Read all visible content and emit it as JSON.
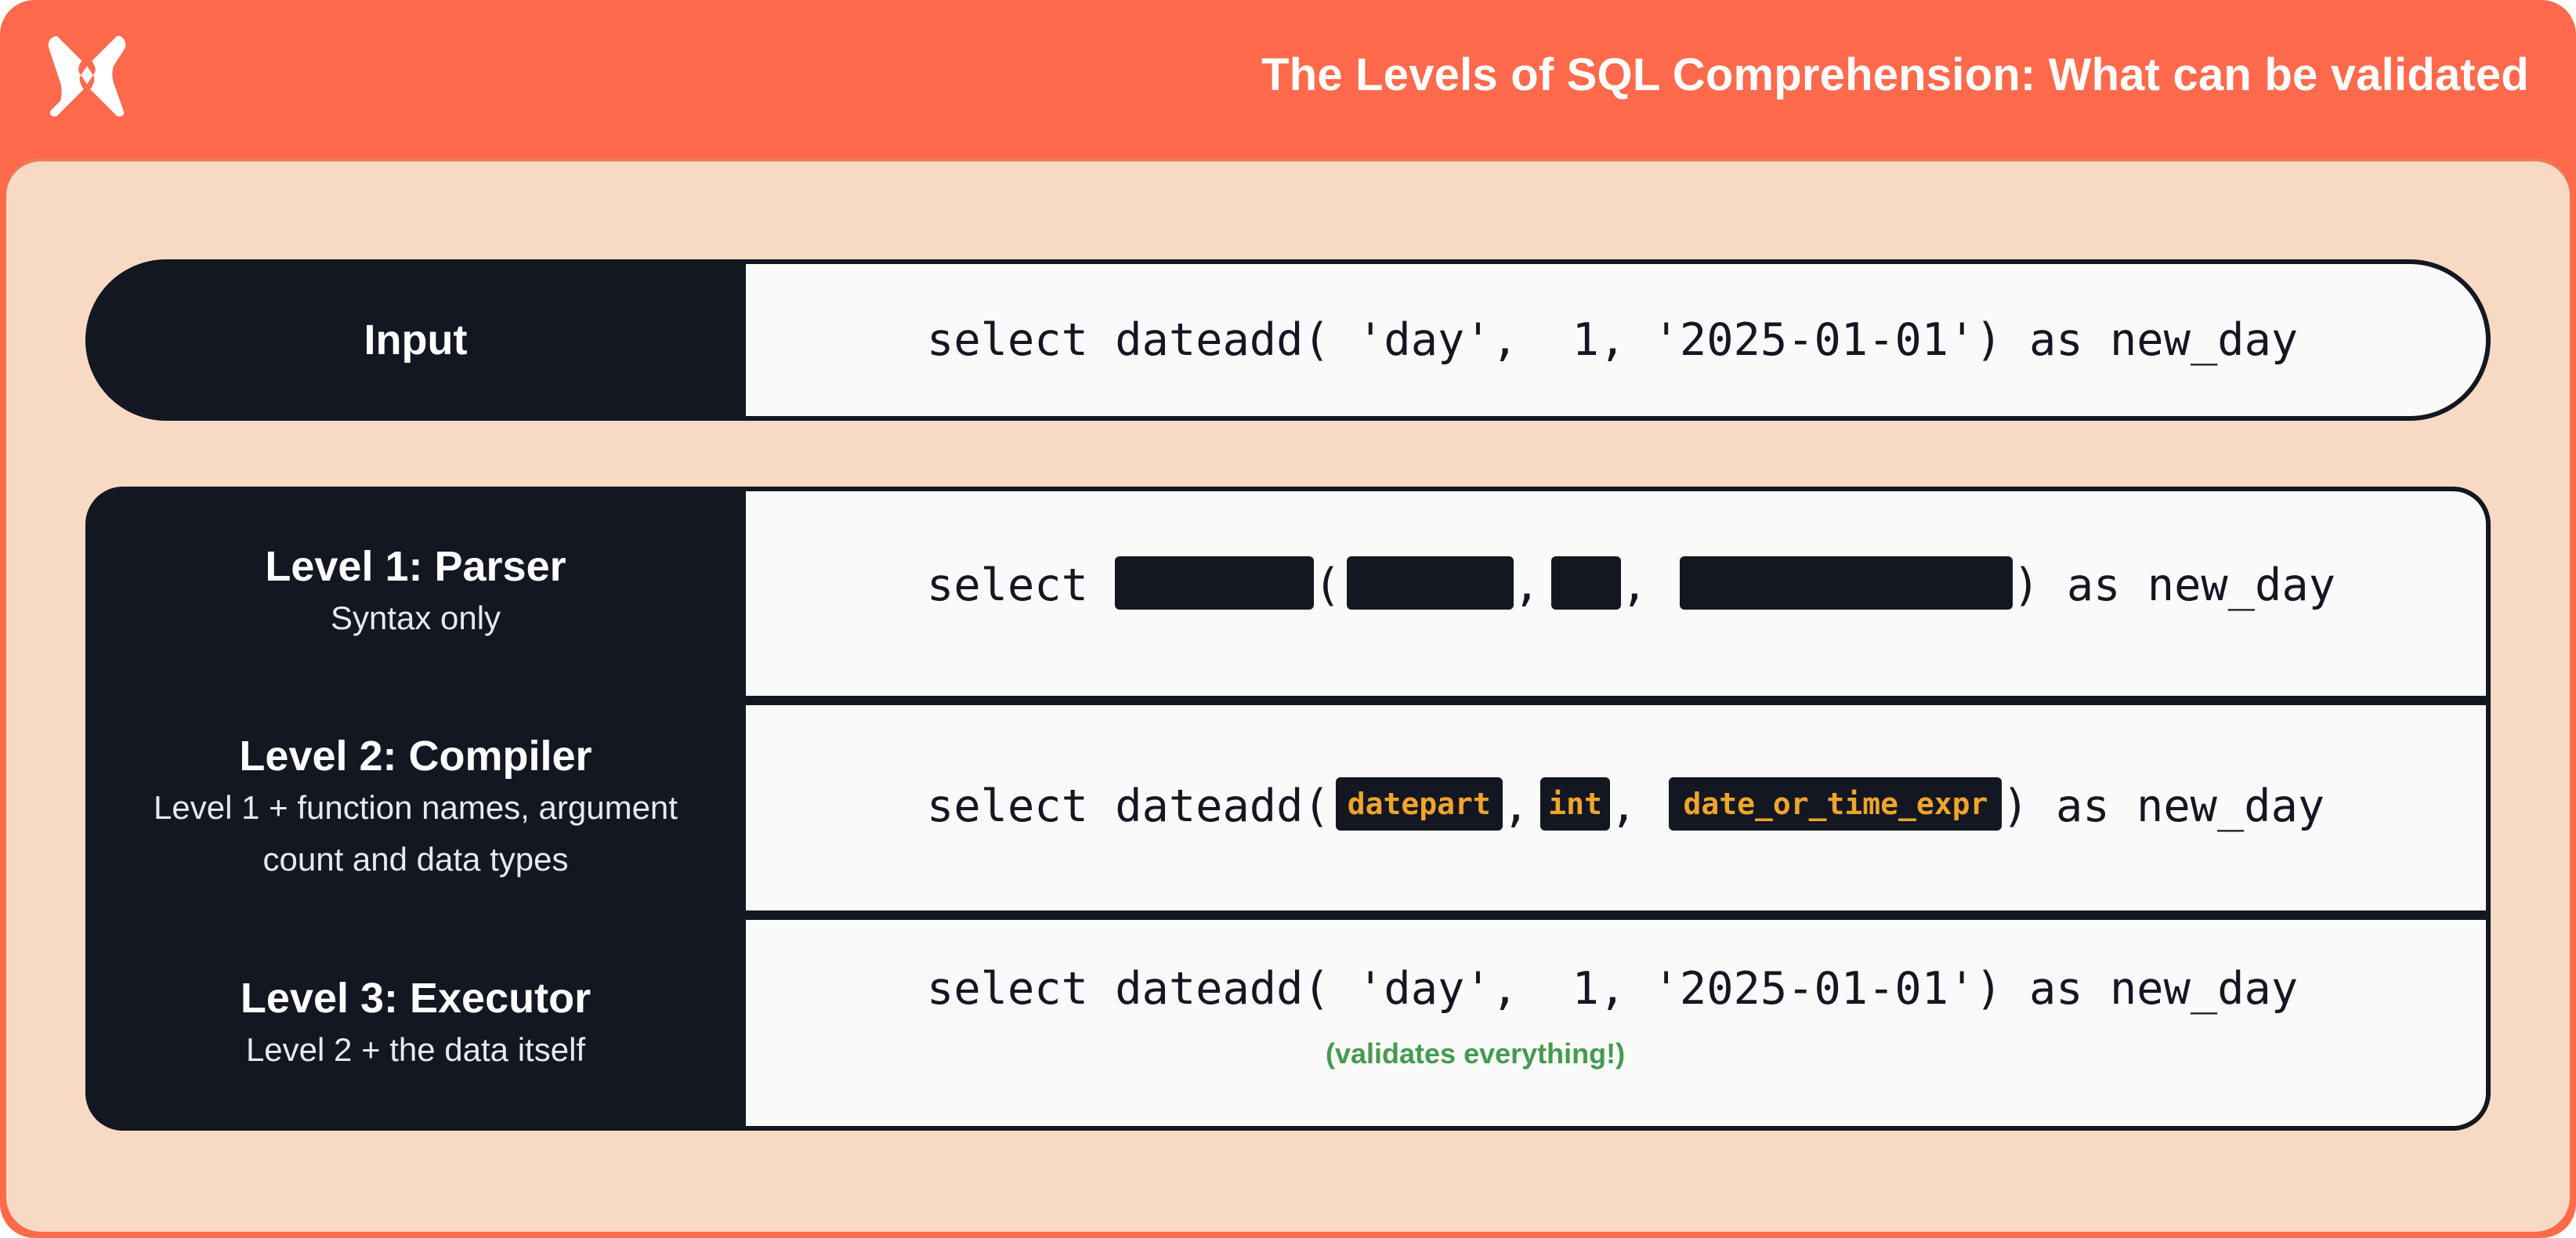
{
  "header": {
    "title": "The Levels of SQL Comprehension: What can be validated",
    "logo": "dbt-logo",
    "colors": {
      "header_bg": "#FF6A4C",
      "panel_bg": "#F8DAC4",
      "dark": "#131722",
      "hint": "#F0A52A",
      "green": "#459A4E"
    }
  },
  "input": {
    "label": "Input",
    "code": {
      "prefix": "select dateadd( ",
      "arg1": "'day'",
      "sep1": ",  ",
      "arg2": "1",
      "sep2": ", ",
      "arg3": "'2025-01-01'",
      "suffix": ") as new_day"
    }
  },
  "levels": [
    {
      "title": "Level 1: Parser",
      "subtitle": "Syntax only",
      "code": {
        "prefix": "select ",
        "open": "(",
        "comma": ",",
        "suffix": ") as new_day"
      }
    },
    {
      "title": "Level 2: Compiler",
      "subtitle_line1": "Level 1 + function names, argument",
      "subtitle_line2": "count and data types",
      "code": {
        "prefix": "select dateadd(",
        "hint1": "datepart",
        "comma": ",",
        "hint2": "int",
        "hint3": "date_or_time_expr",
        "suffix": ") as new_day"
      }
    },
    {
      "title": "Level 3: Executor",
      "subtitle": "Level 2 + the data itself",
      "code": "select dateadd( 'day',  1, '2025-01-01') as new_day",
      "note": "(validates everything!)"
    }
  ]
}
